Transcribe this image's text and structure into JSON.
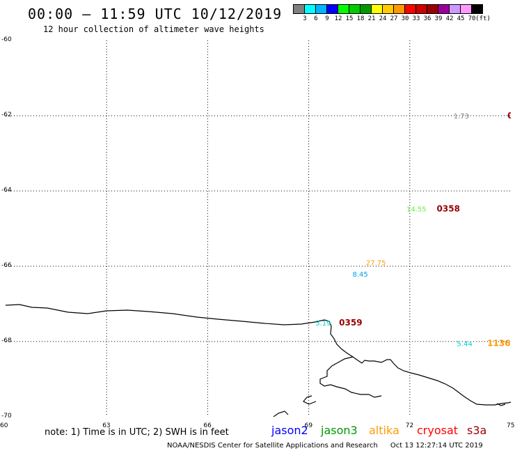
{
  "header": {
    "title": "00:00 – 11:59 UTC 10/12/2019",
    "subtitle": "12 hour collection of altimeter wave heights"
  },
  "legend": {
    "colors": [
      "#808080",
      "#00ffff",
      "#00b4ff",
      "#0000ff",
      "#00ff00",
      "#00cc00",
      "#009900",
      "#ffff00",
      "#ffcc00",
      "#ff9900",
      "#ff0000",
      "#cc0000",
      "#990000",
      "#990099",
      "#cc99ff",
      "#ff99ff",
      "#000000"
    ],
    "labels": [
      "3",
      "6",
      "9",
      "12",
      "15",
      "18",
      "21",
      "24",
      "27",
      "30",
      "33",
      "36",
      "39",
      "42",
      "45",
      "70",
      "(ft)"
    ]
  },
  "axes": {
    "y_ticks": [
      "-60",
      "-62",
      "-64",
      "-66",
      "-68",
      "-70"
    ],
    "x_ticks": [
      "60",
      "63",
      "66",
      "69",
      "72",
      "75"
    ]
  },
  "observations": [
    {
      "lon": 73.3,
      "lat": -62.0,
      "text": "1.73",
      "color": "#808080"
    },
    {
      "lon": 74.9,
      "lat": -62.0,
      "text": "0",
      "color": "#990000"
    },
    {
      "lon": 71.9,
      "lat": -64.47,
      "text": "14.55",
      "color": "#66ee44"
    },
    {
      "lon": 72.8,
      "lat": -64.47,
      "text": "0358",
      "color": "#990000"
    },
    {
      "lon": 70.7,
      "lat": -65.9,
      "text": "27.75",
      "color": "#ff9900"
    },
    {
      "lon": 70.3,
      "lat": -66.2,
      "text": "8.45",
      "color": "#00a0e6"
    },
    {
      "lon": 69.2,
      "lat": -67.5,
      "text": "5.19",
      "color": "#00cccc"
    },
    {
      "lon": 69.9,
      "lat": -67.5,
      "text": "0359",
      "color": "#990000"
    },
    {
      "lon": 73.4,
      "lat": -68.05,
      "text": "5.44",
      "color": "#00cccc"
    },
    {
      "lon": 74.3,
      "lat": -68.05,
      "text": "1136",
      "color": "#ff9900"
    }
  ],
  "note": "note: 1) Time is in UTC; 2) SWH is in feet",
  "satellites": [
    {
      "name": "jason2",
      "color": "#0000ff"
    },
    {
      "name": "jason3",
      "color": "#009900"
    },
    {
      "name": "altika",
      "color": "#ff9900"
    },
    {
      "name": "cryosat",
      "color": "#ff0000"
    },
    {
      "name": "s3a",
      "color": "#990000"
    }
  ],
  "footer": {
    "credit": "NOAA/NESDIS Center for Satellite Applications and Research",
    "timestamp": "Oct 13 12:27:14 UTC 2019"
  }
}
